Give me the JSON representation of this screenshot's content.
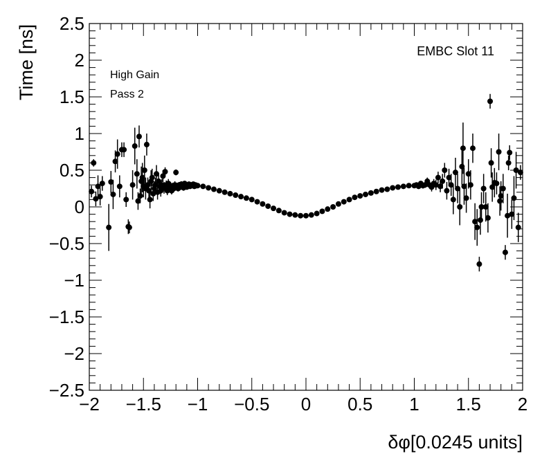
{
  "chart_data": {
    "type": "scatter",
    "title": "",
    "xlabel": "δφ[0.0245 units]",
    "ylabel": "Time [ns]",
    "xlim": [
      -2,
      2
    ],
    "ylim": [
      -2.5,
      2.5
    ],
    "grid": false,
    "x_ticks": [
      -2,
      -1.5,
      -1,
      -0.5,
      0,
      0.5,
      1,
      1.5,
      2
    ],
    "x_tick_labels": [
      "−2",
      "−1.5",
      "−1",
      "−0.5",
      "0",
      "0.5",
      "1",
      "1.5",
      "2"
    ],
    "y_ticks": [
      -2.5,
      -2,
      -1.5,
      -1,
      -0.5,
      0,
      0.5,
      1,
      1.5,
      2,
      2.5
    ],
    "y_tick_labels": [
      "−2.5",
      "−2",
      "−1.5",
      "−1",
      "−0.5",
      "0",
      "0.5",
      "1",
      "1.5",
      "2",
      "2.5"
    ],
    "annotations": {
      "top_right": "EMBC Slot 11",
      "line1": "High Gain",
      "line2": "Pass 2"
    },
    "marker_color": "#000000",
    "series": [
      {
        "points": [
          [
            -1.98,
            0.21,
            0.08
          ],
          [
            -1.96,
            0.6,
            0.05
          ],
          [
            -1.94,
            0.11,
            0.1
          ],
          [
            -1.92,
            0.28,
            0.15
          ],
          [
            -1.9,
            0.14,
            0.12
          ],
          [
            -1.88,
            0.32,
            0.1
          ],
          [
            -1.82,
            -0.28,
            0.32
          ],
          [
            -1.8,
            0.34,
            0.15
          ],
          [
            -1.78,
            0.17,
            0.2
          ],
          [
            -1.76,
            0.62,
            0.15
          ],
          [
            -1.74,
            0.72,
            0.2
          ],
          [
            -1.72,
            0.28,
            0.15
          ],
          [
            -1.7,
            0.78,
            0.1
          ],
          [
            -1.68,
            0.78,
            0.1
          ],
          [
            -1.66,
            0.1,
            0.1
          ],
          [
            -1.64,
            -0.27,
            0.1
          ],
          [
            -1.63,
            -0.28,
            0.08
          ],
          [
            -1.6,
            0.3,
            0.2
          ],
          [
            -1.58,
            0.83,
            0.25
          ],
          [
            -1.56,
            0.45,
            0.2
          ],
          [
            -1.55,
            0.08,
            0.12
          ],
          [
            -1.54,
            0.96,
            0.15
          ],
          [
            -1.53,
            0.15,
            0.1
          ],
          [
            -1.52,
            0.35,
            0.2
          ],
          [
            -1.51,
            0.4,
            0.2
          ],
          [
            -1.5,
            0.28,
            0.15
          ],
          [
            -1.49,
            0.5,
            0.2
          ],
          [
            -1.48,
            0.25,
            0.15
          ],
          [
            -1.47,
            0.85,
            0.15
          ],
          [
            -1.46,
            0.3,
            0.1
          ],
          [
            -1.45,
            0.22,
            0.1
          ],
          [
            -1.44,
            0.1,
            0.12
          ],
          [
            -1.43,
            0.35,
            0.15
          ],
          [
            -1.42,
            0.4,
            0.12
          ],
          [
            -1.41,
            0.18,
            0.1
          ],
          [
            -1.4,
            0.25,
            0.1
          ],
          [
            -1.39,
            0.3,
            0.1
          ],
          [
            -1.38,
            0.45,
            0.12
          ],
          [
            -1.37,
            0.2,
            0.1
          ],
          [
            -1.36,
            0.35,
            0.1
          ],
          [
            -1.35,
            0.28,
            0.1
          ],
          [
            -1.34,
            0.22,
            0.08
          ],
          [
            -1.33,
            0.3,
            0.08
          ],
          [
            -1.32,
            0.42,
            0.08
          ],
          [
            -1.31,
            0.26,
            0.08
          ],
          [
            -1.3,
            0.48,
            0.06
          ],
          [
            -1.29,
            0.3,
            0.06
          ],
          [
            -1.28,
            0.22,
            0.06
          ],
          [
            -1.27,
            0.32,
            0.06
          ],
          [
            -1.26,
            0.26,
            0.06
          ],
          [
            -1.25,
            0.29,
            0.05
          ],
          [
            -1.24,
            0.22,
            0.05
          ],
          [
            -1.23,
            0.28,
            0.05
          ],
          [
            -1.22,
            0.25,
            0.05
          ],
          [
            -1.21,
            0.3,
            0.05
          ],
          [
            -1.2,
            0.47,
            0.04
          ],
          [
            -1.19,
            0.29,
            0.04
          ],
          [
            -1.18,
            0.25,
            0.04
          ],
          [
            -1.17,
            0.3,
            0.04
          ],
          [
            -1.16,
            0.27,
            0.04
          ],
          [
            -1.15,
            0.31,
            0.04
          ],
          [
            -1.14,
            0.28,
            0.04
          ],
          [
            -1.13,
            0.26,
            0.04
          ],
          [
            -1.12,
            0.32,
            0.03
          ],
          [
            -1.11,
            0.29,
            0.03
          ],
          [
            -1.1,
            0.27,
            0.03
          ],
          [
            -1.09,
            0.3,
            0.03
          ],
          [
            -1.08,
            0.31,
            0.03
          ],
          [
            -1.07,
            0.28,
            0.03
          ],
          [
            -1.06,
            0.3,
            0.03
          ],
          [
            -1.05,
            0.29,
            0.03
          ],
          [
            -1.04,
            0.31,
            0.03
          ],
          [
            -1.03,
            0.28,
            0.03
          ],
          [
            -1.02,
            0.3,
            0.03
          ],
          [
            -1.01,
            0.29,
            0.03
          ],
          [
            -1.0,
            0.29,
            0.03
          ],
          [
            -0.95,
            0.28,
            0.02
          ],
          [
            -0.9,
            0.26,
            0.02
          ],
          [
            -0.85,
            0.24,
            0.02
          ],
          [
            -0.8,
            0.22,
            0.02
          ],
          [
            -0.75,
            0.2,
            0.02
          ],
          [
            -0.7,
            0.18,
            0.02
          ],
          [
            -0.65,
            0.16,
            0.02
          ],
          [
            -0.6,
            0.14,
            0.02
          ],
          [
            -0.55,
            0.12,
            0.02
          ],
          [
            -0.5,
            0.1,
            0.02
          ],
          [
            -0.45,
            0.07,
            0.02
          ],
          [
            -0.4,
            0.04,
            0.02
          ],
          [
            -0.35,
            0.01,
            0.02
          ],
          [
            -0.3,
            -0.02,
            0.02
          ],
          [
            -0.25,
            -0.05,
            0.02
          ],
          [
            -0.2,
            -0.08,
            0.02
          ],
          [
            -0.15,
            -0.1,
            0.02
          ],
          [
            -0.1,
            -0.11,
            0.02
          ],
          [
            -0.05,
            -0.12,
            0.02
          ],
          [
            0.0,
            -0.12,
            0.02
          ],
          [
            0.05,
            -0.11,
            0.02
          ],
          [
            0.1,
            -0.09,
            0.02
          ],
          [
            0.15,
            -0.06,
            0.02
          ],
          [
            0.2,
            -0.03,
            0.02
          ],
          [
            0.25,
            0.0,
            0.02
          ],
          [
            0.3,
            0.04,
            0.02
          ],
          [
            0.35,
            0.07,
            0.02
          ],
          [
            0.4,
            0.1,
            0.02
          ],
          [
            0.45,
            0.13,
            0.02
          ],
          [
            0.5,
            0.15,
            0.02
          ],
          [
            0.55,
            0.17,
            0.02
          ],
          [
            0.6,
            0.19,
            0.02
          ],
          [
            0.65,
            0.21,
            0.02
          ],
          [
            0.7,
            0.23,
            0.02
          ],
          [
            0.75,
            0.24,
            0.02
          ],
          [
            0.8,
            0.26,
            0.02
          ],
          [
            0.85,
            0.27,
            0.03
          ],
          [
            0.9,
            0.28,
            0.03
          ],
          [
            0.95,
            0.29,
            0.03
          ],
          [
            1.0,
            0.29,
            0.03
          ],
          [
            1.02,
            0.3,
            0.03
          ],
          [
            1.04,
            0.28,
            0.03
          ],
          [
            1.06,
            0.32,
            0.03
          ],
          [
            1.08,
            0.29,
            0.04
          ],
          [
            1.1,
            0.3,
            0.04
          ],
          [
            1.12,
            0.35,
            0.05
          ],
          [
            1.14,
            0.3,
            0.05
          ],
          [
            1.16,
            0.27,
            0.06
          ],
          [
            1.18,
            0.32,
            0.06
          ],
          [
            1.2,
            0.3,
            0.07
          ],
          [
            1.22,
            0.4,
            0.08
          ],
          [
            1.24,
            0.28,
            0.08
          ],
          [
            1.26,
            0.35,
            0.1
          ],
          [
            1.28,
            0.5,
            0.1
          ],
          [
            1.3,
            0.22,
            0.12
          ],
          [
            1.32,
            0.4,
            0.12
          ],
          [
            1.34,
            0.3,
            0.15
          ],
          [
            1.36,
            0.1,
            0.2
          ],
          [
            1.38,
            0.47,
            0.2
          ],
          [
            1.4,
            0.25,
            0.2
          ],
          [
            1.42,
            0.0,
            0.25
          ],
          [
            1.44,
            0.55,
            0.25
          ],
          [
            1.45,
            0.8,
            0.35
          ],
          [
            1.46,
            0.28,
            0.25
          ],
          [
            1.48,
            0.12,
            0.2
          ],
          [
            1.5,
            0.45,
            0.2
          ],
          [
            1.52,
            0.3,
            0.2
          ],
          [
            1.54,
            0.8,
            0.2
          ],
          [
            1.56,
            -0.2,
            0.25
          ],
          [
            1.58,
            -0.28,
            0.25
          ],
          [
            1.6,
            -0.78,
            0.1
          ],
          [
            1.61,
            -0.18,
            0.2
          ],
          [
            1.62,
            0.0,
            0.2
          ],
          [
            1.64,
            0.25,
            0.2
          ],
          [
            1.66,
            0.0,
            0.2
          ],
          [
            1.68,
            -0.15,
            0.2
          ],
          [
            1.7,
            1.44,
            0.1
          ],
          [
            1.71,
            0.6,
            0.2
          ],
          [
            1.72,
            0.27,
            0.2
          ],
          [
            1.74,
            0.33,
            0.2
          ],
          [
            1.76,
            0.32,
            0.15
          ],
          [
            1.78,
            0.75,
            0.25
          ],
          [
            1.79,
            0.08,
            0.2
          ],
          [
            1.8,
            0.15,
            0.2
          ],
          [
            1.82,
            0.25,
            0.2
          ],
          [
            1.84,
            -0.62,
            0.1
          ],
          [
            1.86,
            -0.12,
            0.3
          ],
          [
            1.87,
            0.6,
            0.1
          ],
          [
            1.88,
            0.74,
            0.1
          ],
          [
            1.9,
            -0.1,
            0.2
          ],
          [
            1.92,
            0.12,
            0.3
          ],
          [
            1.94,
            0.5,
            0.25
          ],
          [
            1.96,
            -0.28,
            0.2
          ],
          [
            1.98,
            0.47,
            0.1
          ]
        ]
      }
    ]
  }
}
